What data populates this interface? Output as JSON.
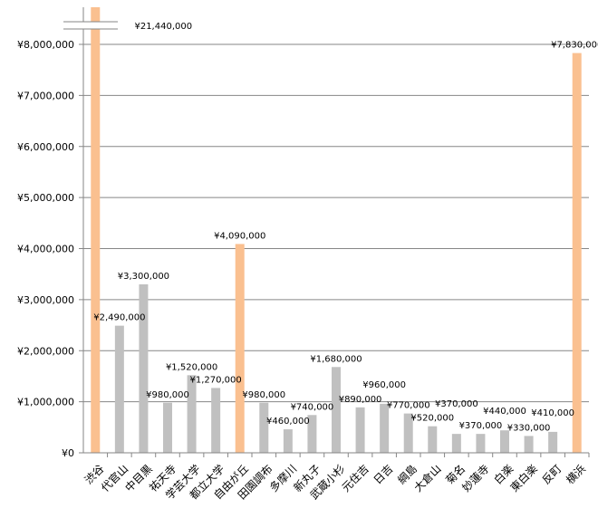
{
  "chart_data": {
    "type": "bar",
    "title": "",
    "xlabel": "",
    "ylabel": "",
    "ylim": [
      0,
      8000000
    ],
    "yticks": [
      "¥0",
      "¥1,000,000",
      "¥2,000,000",
      "¥3,000,000",
      "¥4,000,000",
      "¥5,000,000",
      "¥6,000,000",
      "¥7,000,000",
      "¥8,000,000"
    ],
    "ytick_values": [
      0,
      1000000,
      2000000,
      3000000,
      4000000,
      5000000,
      6000000,
      7000000,
      8000000
    ],
    "axis_break": true,
    "grid": true,
    "categories": [
      "渋谷",
      "代官山",
      "中目黒",
      "祐天寺",
      "学芸大学",
      "都立大学",
      "自由が丘",
      "田園調布",
      "多摩川",
      "新丸子",
      "武蔵小杉",
      "元住吉",
      "日吉",
      "綱島",
      "大倉山",
      "菊名",
      "妙蓮寺",
      "白楽",
      "東白楽",
      "反町",
      "横浜"
    ],
    "values": [
      21440000,
      2490000,
      3300000,
      980000,
      1520000,
      1270000,
      4090000,
      980000,
      460000,
      740000,
      1680000,
      890000,
      960000,
      770000,
      520000,
      370000,
      370000,
      440000,
      330000,
      410000,
      7830000
    ],
    "labels": [
      "¥21,440,000",
      "¥2,490,000",
      "¥3,300,000",
      "¥980,000",
      "¥1,520,000",
      "¥1,270,000",
      "¥4,090,000",
      "¥980,000",
      "¥460,000",
      "¥740,000",
      "¥1,680,000",
      "¥890,000",
      "¥960,000",
      "¥770,000",
      "¥520,000",
      "¥370,000",
      "¥370,000",
      "¥440,000",
      "¥330,000",
      "¥410,000",
      "¥7,830,000"
    ],
    "highlighted": [
      0,
      6,
      20
    ],
    "colors": {
      "normal": "#c0c0c0",
      "highlight": "#fac090",
      "grid": "#868686"
    }
  }
}
